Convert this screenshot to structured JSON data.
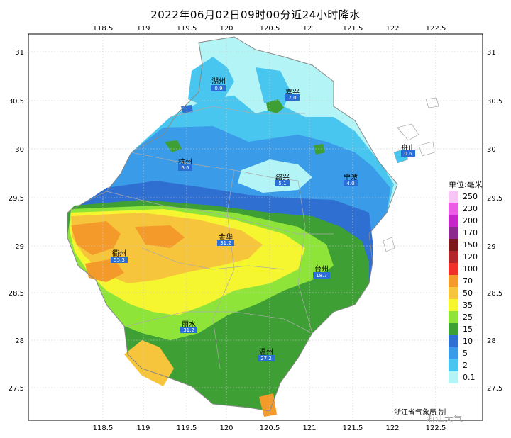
{
  "title": "2022年06月02日09时00分近24小时降水",
  "axes": {
    "lon_ticks": [
      "118.5",
      "119",
      "119.5",
      "120",
      "120.5",
      "121",
      "121.5",
      "122",
      "122.5"
    ],
    "lat_ticks": [
      "31",
      "30.5",
      "30",
      "29.5",
      "29",
      "28.5",
      "28",
      "27.5"
    ]
  },
  "legend": {
    "unit_label": "单位:毫米",
    "levels": [
      {
        "label": "250",
        "color": "#f7c6f5"
      },
      {
        "label": "230",
        "color": "#e85de4"
      },
      {
        "label": "200",
        "color": "#c426c7"
      },
      {
        "label": "170",
        "color": "#8b2a8f"
      },
      {
        "label": "150",
        "color": "#7c1a1a"
      },
      {
        "label": "120",
        "color": "#b3262a"
      },
      {
        "label": "100",
        "color": "#f0302b"
      },
      {
        "label": "70",
        "color": "#f49a2b"
      },
      {
        "label": "50",
        "color": "#f7c53c"
      },
      {
        "label": "35",
        "color": "#f5f530"
      },
      {
        "label": "25",
        "color": "#8fe43a"
      },
      {
        "label": "15",
        "color": "#3ea034"
      },
      {
        "label": "10",
        "color": "#2f6fd1"
      },
      {
        "label": "5",
        "color": "#3a9be8"
      },
      {
        "label": "2",
        "color": "#49c6ef"
      },
      {
        "label": "0.1",
        "color": "#b3f4f7"
      }
    ]
  },
  "cities": [
    {
      "name": "湖州",
      "value": "0.9"
    },
    {
      "name": "嘉兴",
      "value": "2.0"
    },
    {
      "name": "杭州",
      "value": "6.6"
    },
    {
      "name": "绍兴",
      "value": "5.1"
    },
    {
      "name": "宁波",
      "value": "4.0"
    },
    {
      "name": "舟山",
      "value": "0.6"
    },
    {
      "name": "金华",
      "value": "31.2"
    },
    {
      "name": "衢州",
      "value": "55.3"
    },
    {
      "name": "台州",
      "value": "18.7"
    },
    {
      "name": "丽水",
      "value": "31.2"
    },
    {
      "name": "温州",
      "value": "27.2"
    }
  ],
  "credit": "浙江省气象局 制",
  "watermark": "浙江天气",
  "colors": {
    "frame": "#000000",
    "grid": "#cccccc",
    "boundary": "#999999",
    "label_box": "#2a6fd6"
  }
}
